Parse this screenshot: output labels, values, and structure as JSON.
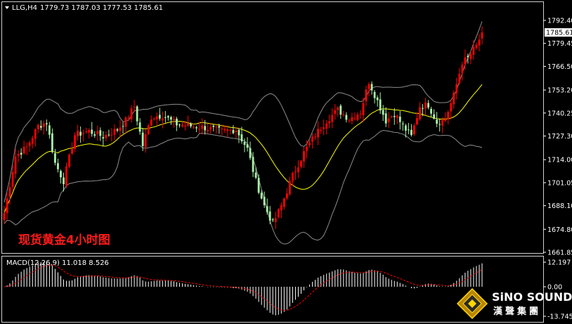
{
  "chart_header": {
    "symbol_label": "LLG,H4",
    "ohlc_text": "1779.73 1787.03 1777.53 1785.61"
  },
  "overlay_title": "现货黄金4小时图",
  "price_axis": {
    "ticks": [
      "1792.40",
      "1779.45",
      "1766.50",
      "1753.20",
      "1740.25",
      "1727.30",
      "1714.00",
      "1701.05",
      "1688.10",
      "1674.80",
      "1661.85"
    ],
    "current_price": "1785.61"
  },
  "macd_panel": {
    "label": "MACD(12,26,9) 11.018 8.526",
    "ticks": [
      "12.197",
      "0.00",
      "-13.745"
    ]
  },
  "logo": {
    "name_en": "SiNO SOUND",
    "name_cn": "漢聲集團"
  },
  "colors": {
    "background": "#000000",
    "bull_candle": "#ff0000",
    "bear_candle": "#a8f0a8",
    "ma_line": "#ffff00",
    "bollinger": "#8c8c8c",
    "macd_hist": "#ffffff",
    "macd_signal": "#ff0000",
    "overlay_text": "#ff1a1a"
  },
  "chart_data": [
    {
      "type": "candlestick",
      "title": "",
      "ylim": [
        1661.85,
        1795
      ],
      "x_count": 170,
      "close_path_anchors": [
        [
          0,
          1684
        ],
        [
          4,
          1716
        ],
        [
          8,
          1721
        ],
        [
          12,
          1733
        ],
        [
          15,
          1735
        ],
        [
          18,
          1712
        ],
        [
          21,
          1702
        ],
        [
          25,
          1728
        ],
        [
          30,
          1730
        ],
        [
          35,
          1727
        ],
        [
          40,
          1731
        ],
        [
          43,
          1736
        ],
        [
          46,
          1744
        ],
        [
          49,
          1722
        ],
        [
          52,
          1738
        ],
        [
          56,
          1739
        ],
        [
          61,
          1734
        ],
        [
          66,
          1733
        ],
        [
          71,
          1732
        ],
        [
          77,
          1730
        ],
        [
          82,
          1731
        ],
        [
          86,
          1720
        ],
        [
          89,
          1702
        ],
        [
          92,
          1688
        ],
        [
          95,
          1678
        ],
        [
          98,
          1688
        ],
        [
          102,
          1705
        ],
        [
          106,
          1718
        ],
        [
          110,
          1728
        ],
        [
          114,
          1736
        ],
        [
          118,
          1742
        ],
        [
          122,
          1737
        ],
        [
          126,
          1741
        ],
        [
          129,
          1758
        ],
        [
          132,
          1747
        ],
        [
          135,
          1736
        ],
        [
          138,
          1740
        ],
        [
          141,
          1733
        ],
        [
          144,
          1727
        ],
        [
          147,
          1744
        ],
        [
          150,
          1745
        ],
        [
          153,
          1735
        ],
        [
          156,
          1737
        ],
        [
          159,
          1750
        ],
        [
          162,
          1769
        ],
        [
          164,
          1771
        ],
        [
          167,
          1778
        ],
        [
          169,
          1785.61
        ]
      ]
    },
    {
      "type": "bar",
      "title": "MACD(12,26,9)",
      "ylim": [
        -13.745,
        12.197
      ],
      "values_summary": {
        "macd": 11.018,
        "signal": 8.526
      }
    }
  ]
}
